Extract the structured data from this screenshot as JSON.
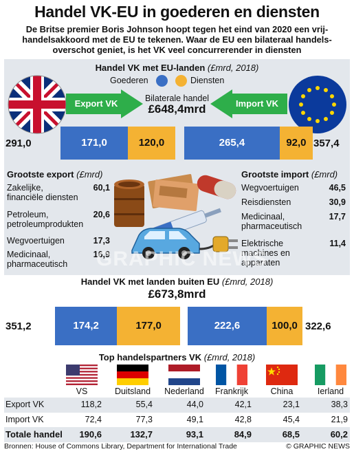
{
  "header": {
    "title": "Handel VK-EU in goederen en diensten",
    "subtitle_lines": [
      "De Britse premier Boris Johnson hoopt tegen het eind van 2020 een vrij-",
      "handelsakkoord met de EU te tekenen. Waar de EU een bilateraal handels-",
      "overschot geniet, is het VK veel concurrerender in diensten"
    ]
  },
  "eu_section": {
    "heading": "Handel VK met EU-landen",
    "heading_unit": "(£mrd, 2018)",
    "legend_goods": "Goederen",
    "legend_services": "Diensten",
    "export_label": "Export VK",
    "import_label": "Import VK",
    "bilateral_label": "Bilaterale handel",
    "bilateral_value": "£648,4mrd"
  },
  "non_eu_section": {
    "heading": "Handel VK met landen buiten EU",
    "heading_unit": "(£mrd, 2018)",
    "total_value": "£673,8mrd"
  },
  "top_export": {
    "title": "Grootste export",
    "unit": "(£mrd)",
    "items": [
      {
        "lines": [
          "Zakelijke,",
          "financiële diensten"
        ],
        "value": "60,1"
      },
      {
        "lines": [
          "Petroleum,",
          "petroleumprodukten"
        ],
        "value": "20,6"
      },
      {
        "lines": [
          "Wegvoertuigen"
        ],
        "value": "17,3"
      },
      {
        "lines": [
          "Medicinaal,",
          "pharmaceutisch"
        ],
        "value": "16,9"
      }
    ]
  },
  "top_import": {
    "title": "Grootste import",
    "unit": "(£mrd)",
    "items": [
      {
        "lines": [
          "Wegvoertuigen"
        ],
        "value": "46,5"
      },
      {
        "lines": [
          "Reisdiensten"
        ],
        "value": "30,9"
      },
      {
        "lines": [
          "Medicinaal,",
          "pharmaceutisch"
        ],
        "value": "17,7"
      },
      {
        "lines": [
          "Elektrische",
          "machines en",
          "apparaten"
        ],
        "value": "11,4"
      }
    ]
  },
  "partners": {
    "heading": "Top handelspartners VK",
    "heading_unit": "(£mrd, 2018)",
    "row_labels": [
      "Export VK",
      "Import VK",
      "Totale handel"
    ],
    "countries": [
      {
        "name": "VS",
        "flag": "us-flag",
        "export": "118,2",
        "import": "72,4",
        "total": "190,6"
      },
      {
        "name": "Duitsland",
        "flag": "germany-flag",
        "export": "55,4",
        "import": "77,3",
        "total": "132,7"
      },
      {
        "name": "Nederland",
        "flag": "netherlands-flag",
        "export": "44,0",
        "import": "49,1",
        "total": "93,1"
      },
      {
        "name": "Frankrijk",
        "flag": "france-flag",
        "export": "42,1",
        "import": "42,8",
        "total": "84,9"
      },
      {
        "name": "China",
        "flag": "china-flag",
        "export": "23,1",
        "import": "45,4",
        "total": "68,5"
      },
      {
        "name": "Ierland",
        "flag": "ireland-flag",
        "export": "38,3",
        "import": "21,9",
        "total": "60,2"
      }
    ]
  },
  "footer": {
    "source": "Bronnen: House of Commons Library, Department for International Trade",
    "credit": "© GRAPHIC NEWS",
    "watermark": "GRAPHIC NEWS"
  },
  "colors": {
    "goods": "#3a6fc4",
    "services": "#f4b233",
    "arrow_green": "#2eae4a",
    "panel": "#e3e7ec"
  },
  "chart_data": [
    {
      "type": "bar",
      "title": "Handel VK met EU-landen (£mrd, 2018)",
      "categories": [
        "Export VK",
        "Import VK"
      ],
      "series": [
        {
          "name": "Goederen",
          "values": [
            171.0,
            265.4
          ],
          "labels": [
            "171,0",
            "265,4"
          ]
        },
        {
          "name": "Diensten",
          "values": [
            120.0,
            92.0
          ],
          "labels": [
            "120,0",
            "92,0"
          ]
        }
      ],
      "totals": [
        "291,0",
        "357,4"
      ],
      "scale_max": 357.4
    },
    {
      "type": "bar",
      "title": "Handel VK met landen buiten EU (£mrd, 2018)",
      "categories": [
        "Export VK",
        "Import VK"
      ],
      "series": [
        {
          "name": "Goederen",
          "values": [
            174.2,
            222.6
          ],
          "labels": [
            "174,2",
            "222,6"
          ]
        },
        {
          "name": "Diensten",
          "values": [
            177.0,
            100.0
          ],
          "labels": [
            "177,0",
            "100,0"
          ]
        }
      ],
      "totals": [
        "351,2",
        "322,6"
      ],
      "scale_max": 351.2
    }
  ]
}
